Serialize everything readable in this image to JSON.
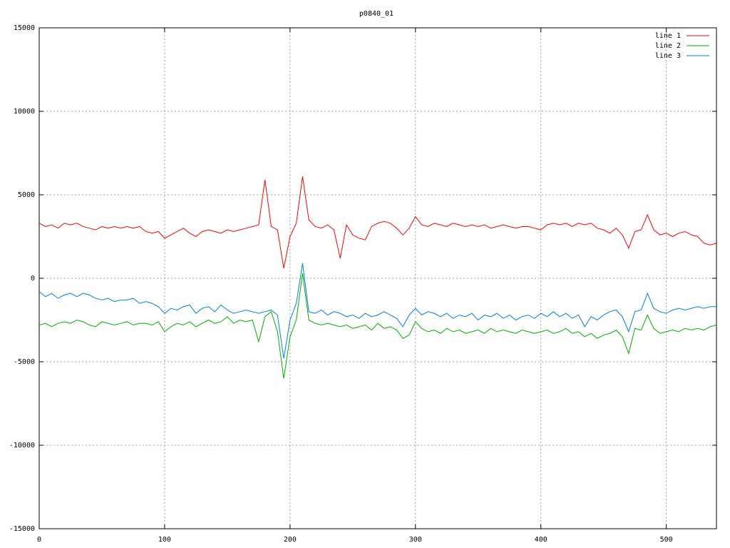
{
  "chart_data": {
    "type": "line",
    "title": "p0840_01",
    "x": [
      0,
      5,
      10,
      15,
      20,
      25,
      30,
      35,
      40,
      45,
      50,
      55,
      60,
      65,
      70,
      75,
      80,
      85,
      90,
      95,
      100,
      105,
      110,
      115,
      120,
      125,
      130,
      135,
      140,
      145,
      150,
      155,
      160,
      165,
      170,
      175,
      180,
      185,
      190,
      195,
      200,
      205,
      210,
      215,
      220,
      225,
      230,
      235,
      240,
      245,
      250,
      255,
      260,
      265,
      270,
      275,
      280,
      285,
      290,
      295,
      300,
      305,
      310,
      315,
      320,
      325,
      330,
      335,
      340,
      345,
      350,
      355,
      360,
      365,
      370,
      375,
      380,
      385,
      390,
      395,
      400,
      405,
      410,
      415,
      420,
      425,
      430,
      435,
      440,
      445,
      450,
      455,
      460,
      465,
      470,
      475,
      480,
      485,
      490,
      495,
      500,
      505,
      510,
      515,
      520,
      525,
      530,
      535,
      540
    ],
    "series": [
      {
        "name": "line 1",
        "color": "#ff0000",
        "values": [
          3300,
          3100,
          3200,
          3000,
          3300,
          3200,
          3300,
          3100,
          3000,
          2900,
          3100,
          3000,
          3100,
          3000,
          3100,
          3000,
          3100,
          2800,
          2700,
          2800,
          2400,
          2600,
          2800,
          3000,
          2700,
          2500,
          2800,
          2900,
          2800,
          2700,
          2900,
          2800,
          2900,
          3000,
          3100,
          3200,
          5900,
          3100,
          2900,
          600,
          2500,
          3300,
          6100,
          3500,
          3100,
          3000,
          3200,
          2900,
          1200,
          3200,
          2600,
          2400,
          2300,
          3100,
          3300,
          3400,
          3300,
          3000,
          2600,
          3000,
          3700,
          3200,
          3100,
          3300,
          3200,
          3100,
          3300,
          3200,
          3100,
          3200,
          3100,
          3200,
          3000,
          3100,
          3200,
          3100,
          3000,
          3100,
          3100,
          3000,
          2900,
          3200,
          3300,
          3200,
          3300,
          3100,
          3300,
          3200,
          3300,
          3000,
          2900,
          2700,
          3000,
          2600,
          1800,
          2800,
          2900,
          3800,
          2900,
          2600,
          2700,
          2500,
          2700,
          2800,
          2600,
          2500,
          2100,
          2000,
          2100
        ]
      },
      {
        "name": "line 2",
        "color": "#00b000",
        "values": [
          -2800,
          -2700,
          -2900,
          -2700,
          -2600,
          -2700,
          -2500,
          -2600,
          -2800,
          -2900,
          -2600,
          -2700,
          -2800,
          -2700,
          -2600,
          -2800,
          -2700,
          -2700,
          -2800,
          -2600,
          -3200,
          -2900,
          -2700,
          -2800,
          -2600,
          -2900,
          -2700,
          -2500,
          -2700,
          -2600,
          -2300,
          -2700,
          -2500,
          -2600,
          -2500,
          -3800,
          -2300,
          -2000,
          -3200,
          -6000,
          -3500,
          -2500,
          300,
          -2500,
          -2700,
          -2800,
          -2700,
          -2800,
          -2900,
          -2800,
          -3000,
          -2900,
          -2800,
          -3100,
          -2700,
          -3000,
          -2900,
          -3100,
          -3600,
          -3400,
          -2600,
          -3000,
          -3200,
          -3100,
          -3300,
          -3000,
          -3200,
          -3100,
          -3300,
          -3200,
          -3100,
          -3300,
          -3000,
          -3200,
          -3100,
          -3200,
          -3300,
          -3100,
          -3200,
          -3300,
          -3200,
          -3100,
          -3300,
          -3200,
          -3000,
          -3300,
          -3200,
          -3500,
          -3300,
          -3600,
          -3400,
          -3300,
          -3100,
          -3500,
          -4500,
          -3000,
          -3100,
          -2200,
          -3000,
          -3300,
          -3200,
          -3100,
          -3200,
          -3000,
          -3100,
          -3000,
          -3100,
          -2900,
          -2800
        ]
      },
      {
        "name": "line 3",
        "color": "#0080e0",
        "values": [
          -800,
          -1100,
          -900,
          -1200,
          -1000,
          -900,
          -1100,
          -900,
          -1000,
          -1200,
          -1300,
          -1200,
          -1400,
          -1300,
          -1300,
          -1200,
          -1500,
          -1400,
          -1500,
          -1700,
          -2100,
          -1800,
          -1900,
          -1700,
          -1600,
          -2100,
          -1800,
          -1700,
          -2000,
          -1600,
          -1900,
          -2100,
          -2000,
          -1900,
          -2000,
          -2100,
          -2000,
          -1900,
          -2200,
          -4800,
          -2500,
          -1500,
          900,
          -2000,
          -2100,
          -1900,
          -2200,
          -2000,
          -2100,
          -2300,
          -2200,
          -2400,
          -2100,
          -2300,
          -2200,
          -2000,
          -2200,
          -2400,
          -2900,
          -2200,
          -1800,
          -2200,
          -2000,
          -2100,
          -2300,
          -2100,
          -2400,
          -2200,
          -2300,
          -2100,
          -2500,
          -2200,
          -2300,
          -2100,
          -2400,
          -2200,
          -2500,
          -2300,
          -2200,
          -2400,
          -2100,
          -2300,
          -2000,
          -2300,
          -2100,
          -2400,
          -2200,
          -2900,
          -2300,
          -2500,
          -2200,
          -2000,
          -1900,
          -2300,
          -3200,
          -2000,
          -1900,
          -900,
          -1800,
          -2000,
          -2100,
          -1900,
          -1800,
          -1900,
          -1800,
          -1700,
          -1800,
          -1700,
          -1700
        ]
      }
    ],
    "xlim": [
      0,
      540
    ],
    "xticks": [
      0,
      100,
      200,
      300,
      400,
      500
    ],
    "ylim": [
      -15000,
      15000
    ],
    "yticks": [
      -15000,
      -10000,
      -5000,
      0,
      5000,
      10000,
      15000
    ],
    "grid": true,
    "legend": "top-right"
  }
}
